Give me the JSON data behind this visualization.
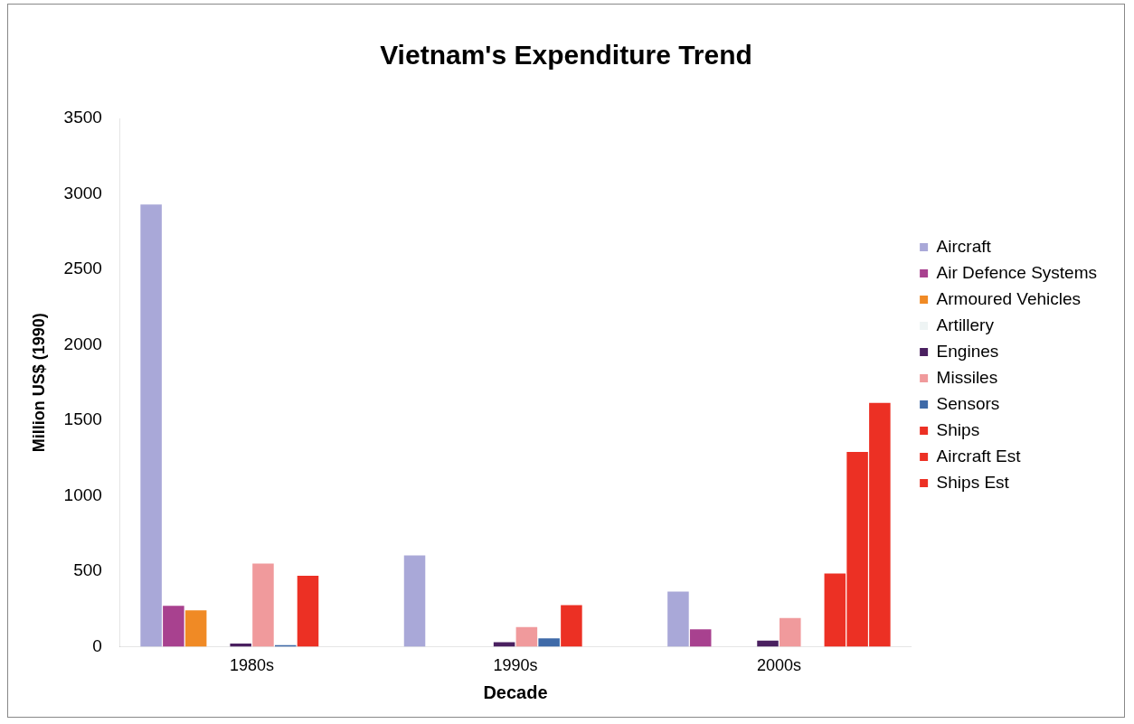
{
  "chart_data": {
    "type": "bar",
    "title": "Vietnam's Expenditure Trend",
    "xlabel": "Decade",
    "ylabel": "Million US$ (1990)",
    "categories": [
      "1980s",
      "1990s",
      "2000s"
    ],
    "series": [
      {
        "name": "Aircraft",
        "color": "#a9a8d8",
        "values": [
          2930,
          605,
          365
        ]
      },
      {
        "name": "Air Defence Systems",
        "color": "#a8418f",
        "values": [
          270,
          null,
          115
        ]
      },
      {
        "name": "Armoured Vehicles",
        "color": "#f08a25",
        "values": [
          240,
          null,
          null
        ]
      },
      {
        "name": "Artillery",
        "color": "#eef4f4",
        "values": [
          0,
          0,
          0
        ]
      },
      {
        "name": "Engines",
        "color": "#4a2060",
        "values": [
          20,
          30,
          40
        ]
      },
      {
        "name": "Missiles",
        "color": "#f09a9c",
        "values": [
          550,
          130,
          190
        ]
      },
      {
        "name": "Sensors",
        "color": "#3f6aa8",
        "values": [
          10,
          55,
          null
        ]
      },
      {
        "name": "Ships",
        "color": "#ec3024",
        "values": [
          470,
          275,
          485
        ]
      },
      {
        "name": "Aircraft Est",
        "color": "#ec3024",
        "values": [
          null,
          null,
          1290
        ]
      },
      {
        "name": "Ships Est",
        "color": "#ec3024",
        "values": [
          null,
          null,
          1615
        ]
      }
    ],
    "ylim": [
      0,
      3500
    ],
    "yticks": [
      0,
      500,
      1000,
      1500,
      2000,
      2500,
      3000,
      3500
    ],
    "grid": false,
    "legend": "right"
  }
}
